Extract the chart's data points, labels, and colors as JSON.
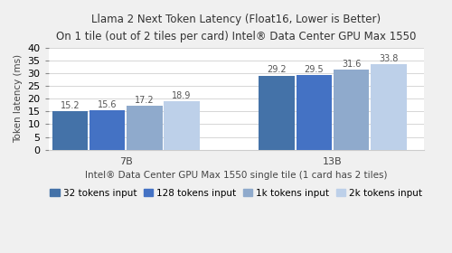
{
  "title_line1": "Llama 2 Next Token Latency (Float16, Lower is Better)",
  "title_line2": "On 1 tile (out of 2 tiles per card) Intel® Data Center GPU Max 1550",
  "xlabel": "Intel® Data Center GPU Max 1550 single tile (1 card has 2 tiles)",
  "ylabel": "Token latency (ms)",
  "groups": [
    "7B",
    "13B"
  ],
  "series_labels": [
    "32 tokens input",
    "128 tokens input",
    "1k tokens input",
    "2k tokens input"
  ],
  "series_colors": [
    "#4472a8",
    "#4472c4",
    "#8faacc",
    "#bdd0e9"
  ],
  "values": {
    "7B": [
      15.2,
      15.6,
      17.2,
      18.9
    ],
    "13B": [
      29.2,
      29.5,
      31.6,
      33.8
    ]
  },
  "ylim": [
    0,
    40
  ],
  "yticks": [
    0,
    5,
    10,
    15,
    20,
    25,
    30,
    35,
    40
  ],
  "background_color": "#f0f0f0",
  "plot_background_color": "#ffffff",
  "bar_width": 0.13,
  "title_fontsize": 8.5,
  "axis_label_fontsize": 7.5,
  "tick_fontsize": 8,
  "legend_fontsize": 7.5,
  "value_label_fontsize": 7.0,
  "group_centers": [
    0.3,
    1.05
  ],
  "xlim": [
    0.02,
    1.38
  ]
}
